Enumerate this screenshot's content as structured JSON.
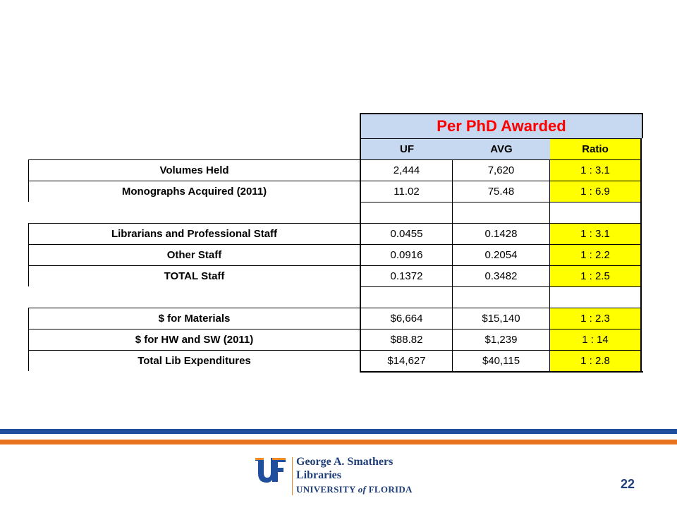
{
  "table": {
    "title": "Per PhD Awarded",
    "headers": [
      "UF",
      "AVG",
      "Ratio"
    ],
    "rows": [
      {
        "label": "Volumes Held",
        "uf": "2,444",
        "avg": "7,620",
        "ratio": "1 : 3.1"
      },
      {
        "label": "Monographs Acquired (2011)",
        "uf": "11.02",
        "avg": "75.48",
        "ratio": "1 : 6.9"
      },
      {
        "label": "",
        "uf": "",
        "avg": "",
        "ratio": ""
      },
      {
        "label": "Librarians and Professional Staff",
        "uf": "0.0455",
        "avg": "0.1428",
        "ratio": "1 : 3.1"
      },
      {
        "label": "Other Staff",
        "uf": "0.0916",
        "avg": "0.2054",
        "ratio": "1 : 2.2"
      },
      {
        "label": "TOTAL Staff",
        "uf": "0.1372",
        "avg": "0.3482",
        "ratio": "1 : 2.5"
      },
      {
        "label": "",
        "uf": "",
        "avg": "",
        "ratio": ""
      },
      {
        "label": "$ for Materials",
        "uf": "$6,664",
        "avg": "$15,140",
        "ratio": "1 : 2.3"
      },
      {
        "label": "$ for HW and SW (2011)",
        "uf": "$88.82",
        "avg": "$1,239",
        "ratio": "1 : 14"
      },
      {
        "label": "Total Lib Expenditures",
        "uf": "$14,627",
        "avg": "$40,115",
        "ratio": "1 : 2.8"
      }
    ]
  },
  "footer": {
    "logo_mark": "UF",
    "logo_line1": "George A. Smathers",
    "logo_line2": "Libraries",
    "logo_line3_a": "UNIVERSITY ",
    "logo_line3_b": "of",
    "logo_line3_c": " FLORIDA",
    "page_number": "22"
  },
  "colors": {
    "title_red": "#ff0000",
    "header_blue": "#c6d9f1",
    "ratio_yellow": "#ffff00",
    "bar_blue": "#1f4e9c",
    "bar_orange": "#e8731e",
    "logo_navy": "#1f3f7a"
  }
}
